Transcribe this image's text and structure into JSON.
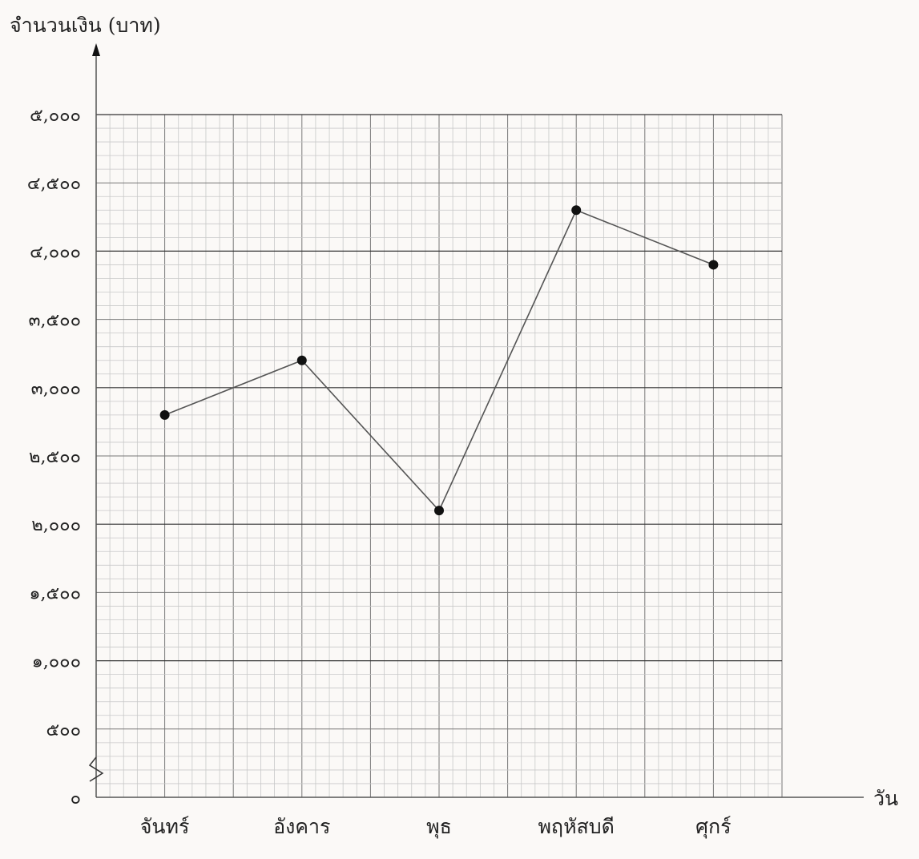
{
  "chart_data": {
    "type": "line",
    "ylabel": "จำนวนเงิน (บาท)",
    "xlabel": "วัน",
    "categories": [
      "จันทร์",
      "อังคาร",
      "พุธ",
      "พฤหัสบดี",
      "ศุกร์"
    ],
    "values": [
      2800,
      3200,
      2100,
      4300,
      3900
    ],
    "ylim": [
      0,
      5000
    ],
    "y_axis_break": true,
    "yticks": [
      {
        "value": 0,
        "label": "๐"
      },
      {
        "value": 500,
        "label": "๕๐๐"
      },
      {
        "value": 1000,
        "label": "๑,๐๐๐"
      },
      {
        "value": 1500,
        "label": "๑,๕๐๐"
      },
      {
        "value": 2000,
        "label": "๒,๐๐๐"
      },
      {
        "value": 2500,
        "label": "๒,๕๐๐"
      },
      {
        "value": 3000,
        "label": "๓,๐๐๐"
      },
      {
        "value": 3500,
        "label": "๓,๕๐๐"
      },
      {
        "value": 4000,
        "label": "๔,๐๐๐"
      },
      {
        "value": 4500,
        "label": "๔,๕๐๐"
      },
      {
        "value": 5000,
        "label": "๕,๐๐๐"
      }
    ],
    "grid": true,
    "colors": {
      "line": "#555555",
      "marker": "#111111",
      "grid_minor": "#c8c8c8",
      "grid_major": "#777777",
      "grid_bold": "#333333",
      "axis": "#555555",
      "background": "#fbf9f7"
    }
  }
}
